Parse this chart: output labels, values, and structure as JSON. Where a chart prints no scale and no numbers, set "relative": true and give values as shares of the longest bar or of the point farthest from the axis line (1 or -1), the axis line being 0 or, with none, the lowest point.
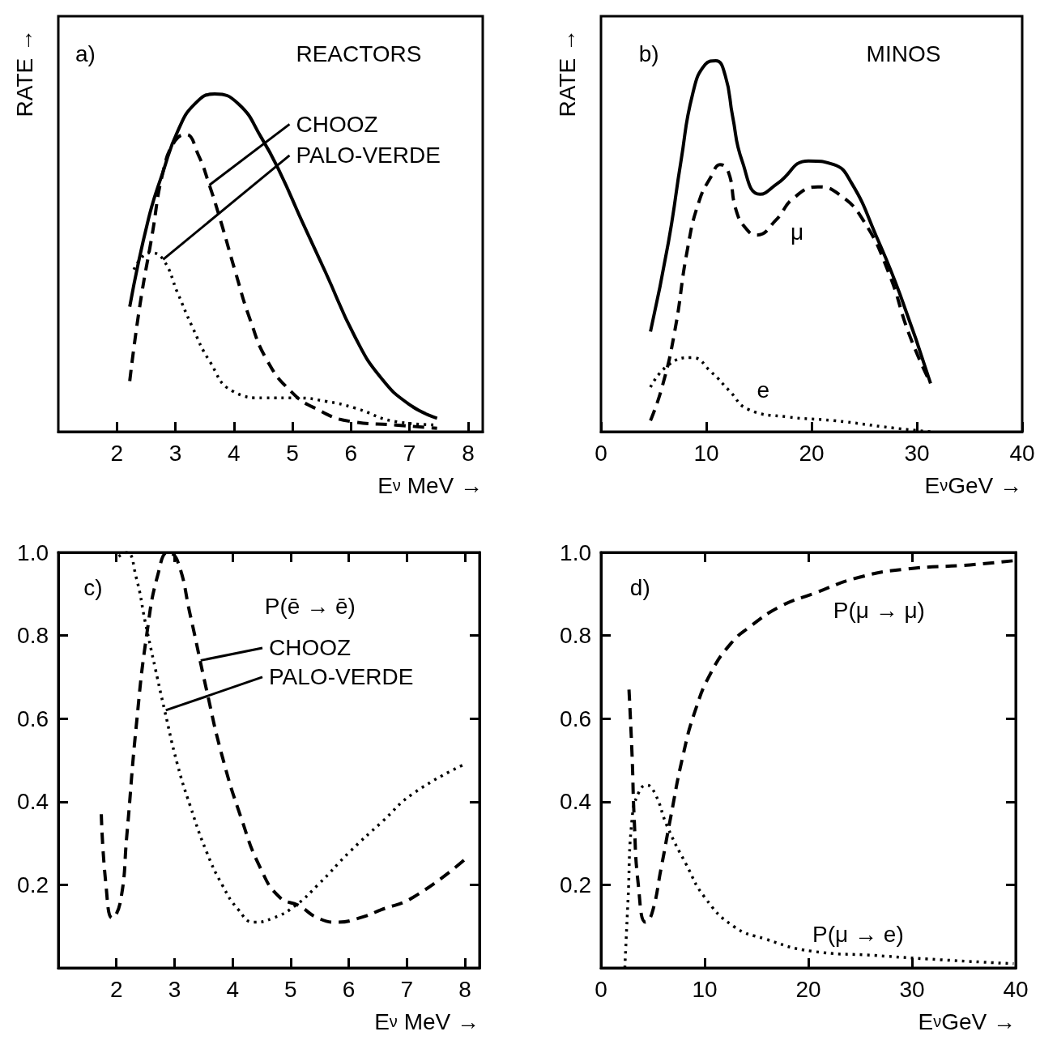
{
  "chart_data": [
    {
      "type": "line",
      "relative": true,
      "xlabel": "E$_{ν}$ MeV →",
      "ylabel": "RATE →",
      "marker": "none",
      "xlim": [
        1,
        8.25
      ],
      "xticks": [
        2,
        3,
        4,
        5,
        6,
        7,
        8
      ],
      "annotations": [
        "a)",
        "REACTORS",
        {
          "text": "CHOOZ",
          "x": 3.58,
          "y": 0.73
        },
        {
          "text": "PALO-VERDE",
          "x": 2.79,
          "y": 0.51
        }
      ],
      "series": [
        {
          "color": "#000000",
          "line_style": "solid",
          "x": [
            2.22,
            2.54,
            2.79,
            3.04,
            3.33,
            3.67,
            4.08,
            4.47,
            4.78,
            5.17,
            5.57,
            6.07,
            6.51,
            7.0,
            7.47
          ],
          "values": [
            0.37,
            0.63,
            0.77,
            0.89,
            0.97,
            1,
            0.97,
            0.87,
            0.77,
            0.62,
            0.47,
            0.28,
            0.16,
            0.08,
            0.04
          ]
        },
        {
          "color": "#000000",
          "line_style": "dashed",
          "x": [
            2.22,
            2.39,
            2.6,
            2.79,
            2.99,
            3.18,
            3.39,
            3.58,
            3.78,
            4.03,
            4.28,
            4.57,
            4.97,
            5.38,
            6.01,
            6.76,
            7.47
          ],
          "values": [
            0.15,
            0.37,
            0.58,
            0.77,
            0.86,
            0.88,
            0.82,
            0.73,
            0.62,
            0.47,
            0.33,
            0.21,
            0.12,
            0.07,
            0.03,
            0.02,
            0.01
          ]
        },
        {
          "color": "#000000",
          "line_style": "dotted",
          "x": [
            2.29,
            2.57,
            2.79,
            3.04,
            3.29,
            3.58,
            3.98,
            4.53,
            5.07,
            5.57,
            6.07,
            6.76,
            7.47
          ],
          "values": [
            0.48,
            0.53,
            0.51,
            0.41,
            0.31,
            0.21,
            0.12,
            0.1,
            0.1,
            0.09,
            0.07,
            0.03,
            0.02
          ]
        }
      ]
    },
    {
      "type": "line",
      "relative": true,
      "xlabel": "E$_{ν}$GeV →",
      "ylabel": "RATE →",
      "marker": "none",
      "xlim": [
        0,
        40
      ],
      "xticks": [
        0,
        10,
        20,
        30,
        40
      ],
      "annotations": [
        "b)",
        "MINOS",
        "μ",
        "e"
      ],
      "series": [
        {
          "color": "#000000",
          "line_style": "solid",
          "x": [
            4.7,
            6.4,
            7.6,
            8.7,
            9.9,
            10.9,
            11.8,
            12.5,
            13.4,
            15.1,
            16.8,
            19.7,
            22.1,
            23.8,
            26.1,
            28.4,
            31.3
          ],
          "values": [
            0.27,
            0.51,
            0.73,
            0.91,
            0.99,
            1,
            0.96,
            0.85,
            0.73,
            0.64,
            0.67,
            0.73,
            0.72,
            0.67,
            0.53,
            0.37,
            0.13
          ]
        },
        {
          "color": "#000000",
          "line_style": "dashed",
          "x": [
            4.7,
            5.8,
            7.0,
            8.2,
            9.3,
            10.5,
            11.3,
            12.1,
            12.8,
            13.7,
            14.8,
            16.6,
            18.3,
            20.6,
            22.6,
            24.9,
            27.3,
            29.3,
            31.3
          ],
          "values": [
            0.03,
            0.12,
            0.27,
            0.49,
            0.62,
            0.69,
            0.72,
            0.7,
            0.6,
            0.55,
            0.53,
            0.57,
            0.63,
            0.66,
            0.64,
            0.57,
            0.43,
            0.26,
            0.13
          ]
        },
        {
          "color": "#000000",
          "line_style": "dotted",
          "x": [
            4.7,
            6.4,
            8.6,
            10.5,
            12.2,
            14.0,
            17.7,
            22.1,
            27.8,
            31.3
          ],
          "values": [
            0.12,
            0.18,
            0.2,
            0.16,
            0.11,
            0.06,
            0.04,
            0.03,
            0.01,
            0.0
          ]
        }
      ]
    },
    {
      "type": "line",
      "xlabel": "E$_{ν}$ MeV →",
      "marker": "none",
      "xlim": [
        1,
        8.25
      ],
      "xticks": [
        2,
        3,
        4,
        5,
        6,
        7,
        8
      ],
      "ylim": [
        0,
        1
      ],
      "yticks": [
        0.2,
        0.4,
        0.6,
        0.8,
        {
          "value": 1,
          "label": "1.0"
        }
      ],
      "annotations": [
        "c)",
        "P(ē → ē)",
        {
          "text": "CHOOZ",
          "x": 3.45,
          "y": 0.74
        },
        {
          "text": "PALO-VERDE",
          "x": 2.85,
          "y": 0.62
        }
      ],
      "series": [
        {
          "color": "#000000",
          "line_style": "dashed",
          "x": [
            1.74,
            1.82,
            1.93,
            2.07,
            2.18,
            2.34,
            2.53,
            2.72,
            2.89,
            3.05,
            3.27,
            3.55,
            3.82,
            4.15,
            4.48,
            4.81,
            5.14,
            5.47,
            5.8,
            6.18,
            6.56,
            7.11,
            7.99
          ],
          "values": [
            0.37,
            0.2,
            0.12,
            0.16,
            0.32,
            0.58,
            0.81,
            0.95,
            1.0,
            0.98,
            0.85,
            0.67,
            0.51,
            0.36,
            0.24,
            0.17,
            0.15,
            0.12,
            0.11,
            0.12,
            0.14,
            0.17,
            0.26
          ]
        },
        {
          "color": "#000000",
          "line_style": "dotted",
          "x": [
            2.04,
            2.18,
            2.34,
            2.5,
            2.67,
            2.83,
            3.05,
            3.27,
            3.55,
            3.82,
            4.1,
            4.37,
            4.7,
            5.08,
            5.47,
            6.02,
            6.56,
            7.11,
            7.99
          ],
          "values": [
            0.99,
            1.0,
            0.94,
            0.83,
            0.72,
            0.62,
            0.49,
            0.39,
            0.28,
            0.2,
            0.14,
            0.11,
            0.12,
            0.15,
            0.2,
            0.28,
            0.35,
            0.42,
            0.49
          ]
        }
      ]
    },
    {
      "type": "line",
      "xlabel": "E$_{ν}$GeV →",
      "marker": "none",
      "xlim": [
        0,
        40
      ],
      "xticks": [
        0,
        10,
        20,
        30,
        40
      ],
      "ylim": [
        0,
        1
      ],
      "yticks": [
        0.2,
        0.4,
        0.6,
        0.8,
        {
          "value": 1,
          "label": "1.0"
        }
      ],
      "annotations": [
        "d)",
        "P(μ → μ)",
        "P(μ → e)"
      ],
      "series": [
        {
          "color": "#000000",
          "line_style": "dashed",
          "x": [
            2.7,
            3.0,
            3.2,
            3.6,
            4.3,
            4.9,
            5.8,
            6.7,
            7.9,
            9.1,
            10.6,
            12.5,
            14.3,
            17.3,
            20.4,
            24.9,
            29.5,
            35.6,
            39.8
          ],
          "values": [
            0.67,
            0.51,
            0.36,
            0.2,
            0.11,
            0.13,
            0.24,
            0.36,
            0.51,
            0.62,
            0.71,
            0.78,
            0.82,
            0.87,
            0.9,
            0.94,
            0.96,
            0.97,
            0.98
          ]
        },
        {
          "color": "#000000",
          "line_style": "dotted",
          "x": [
            2.3,
            2.6,
            3.0,
            3.6,
            4.4,
            5.2,
            6.4,
            8.2,
            10.0,
            12.8,
            15.8,
            20.4,
            26.4,
            32.5,
            39.8
          ],
          "values": [
            0.0,
            0.16,
            0.36,
            0.42,
            0.44,
            0.42,
            0.34,
            0.25,
            0.17,
            0.1,
            0.07,
            0.04,
            0.03,
            0.02,
            0.01
          ]
        }
      ]
    }
  ]
}
